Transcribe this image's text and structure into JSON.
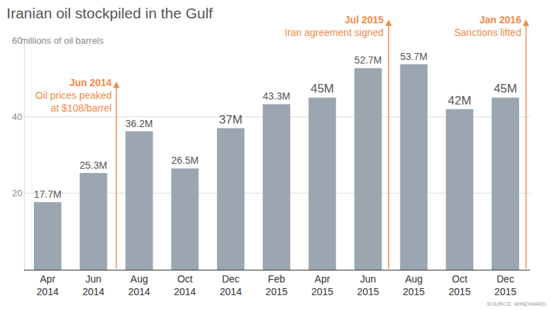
{
  "chart_data": {
    "type": "bar",
    "title": "Iranian oil stockpiled in the Gulf",
    "ylabel": "millions of oil barrels",
    "source": "SOURCE: WINDWARD",
    "categories": [
      "Apr 2014",
      "Jun 2014",
      "Aug 2014",
      "Oct 2014",
      "Dec 2014",
      "Feb 2015",
      "Apr 2015",
      "Jun 2015",
      "Aug 2015",
      "Oct 2015",
      "Dec 2015"
    ],
    "values": [
      17.7,
      25.3,
      36.2,
      26.5,
      37,
      43.3,
      45,
      52.7,
      53.7,
      42,
      45
    ],
    "value_labels": [
      "17.7M",
      "25.3M",
      "36.2M",
      "26.5M",
      "37M",
      "43.3M",
      "45M",
      "52.7M",
      "53.7M",
      "42M",
      "45M"
    ],
    "color": "#9ba6b1",
    "ylim": [
      0,
      60
    ],
    "yticks": [
      20,
      40,
      60
    ],
    "grid": true,
    "data_labels": true,
    "annotations": [
      {
        "x": 1.5,
        "lines": [
          "Jun 2014",
          "Oil prices peaked",
          "at $108/barrel"
        ],
        "color": "#f08a4b"
      },
      {
        "x": 7.45,
        "lines": [
          "Jul 2015",
          "Iran agreement signed"
        ],
        "color": "#f08a4b"
      },
      {
        "x": 10.45,
        "lines": [
          "Jan 2016",
          "Sanctions lifted"
        ],
        "color": "#f08a4b"
      }
    ]
  }
}
